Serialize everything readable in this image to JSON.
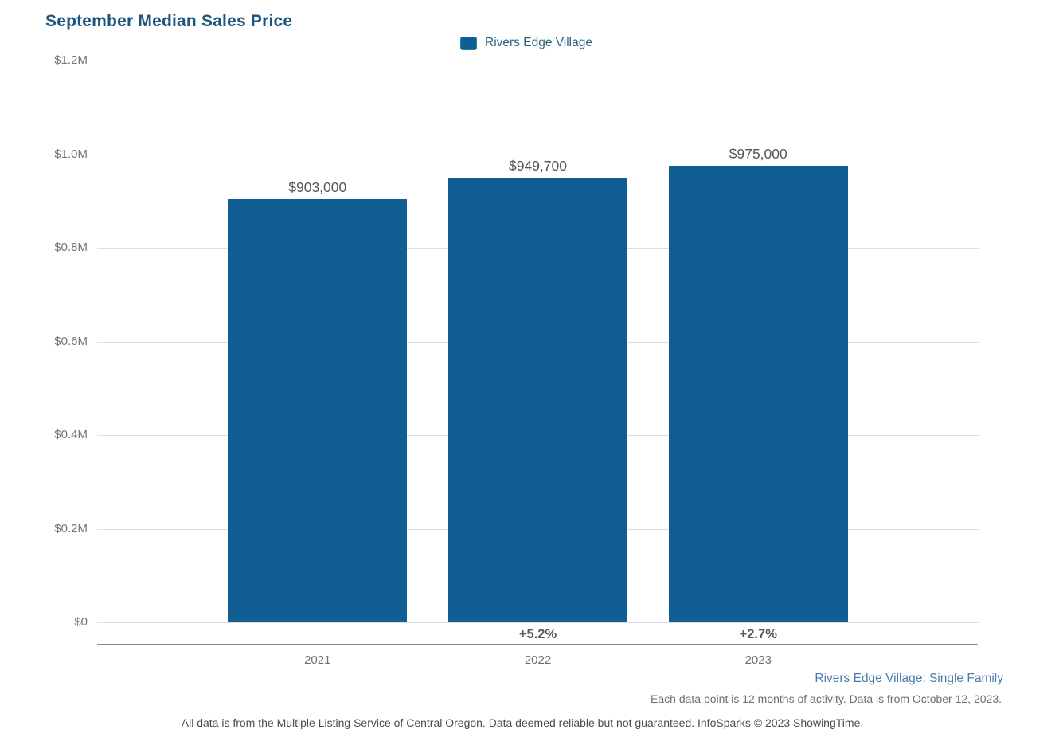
{
  "page": {
    "title": "September Median Sales Price"
  },
  "legend": {
    "label": "Rivers Edge Village",
    "swatch_color": "#115E93"
  },
  "footer": {
    "series_context": "Rivers Edge Village: Single Family",
    "data_note": "Each data point is 12 months of activity. Data is from October 12, 2023.",
    "disclaimer": "All data is from the Multiple Listing Service of Central Oregon. Data deemed reliable but not guaranteed. InfoSparks © 2023 ShowingTime."
  },
  "colors": {
    "title": "#1D567C",
    "bar": "#115E93",
    "legend_text": "#2E5F7F",
    "value_label": "#555555",
    "axis_label": "#757575",
    "pct_label": "#595959",
    "gridline": "#DEDEDE",
    "axis_line": "#8A8A8A",
    "footer_blue": "#4A7BAE",
    "footer_gray": "#6E6E6E"
  },
  "chart_data": {
    "type": "bar",
    "title": "September Median Sales Price",
    "legend": [
      "Rivers Edge Village"
    ],
    "legend_position": "top-center",
    "categories": [
      "2021",
      "2022",
      "2023"
    ],
    "series": [
      {
        "name": "Rivers Edge Village",
        "values": [
          903000,
          949700,
          975000
        ],
        "value_labels": [
          "$903,000",
          "$949,700",
          "$975,000"
        ],
        "pct_change_labels": [
          "",
          "+5.2%",
          "+2.7%"
        ],
        "color": "#115E93"
      }
    ],
    "xlabel": "",
    "ylabel": "",
    "ylim": [
      0,
      1200000
    ],
    "grid": true,
    "yticks": [
      {
        "value": 0,
        "label": "$0"
      },
      {
        "value": 200000,
        "label": "$0.2M"
      },
      {
        "value": 400000,
        "label": "$0.4M"
      },
      {
        "value": 600000,
        "label": "$0.6M"
      },
      {
        "value": 800000,
        "label": "$0.8M"
      },
      {
        "value": 1000000,
        "label": "$1.0M"
      },
      {
        "value": 1200000,
        "label": "$1.2M"
      }
    ]
  }
}
